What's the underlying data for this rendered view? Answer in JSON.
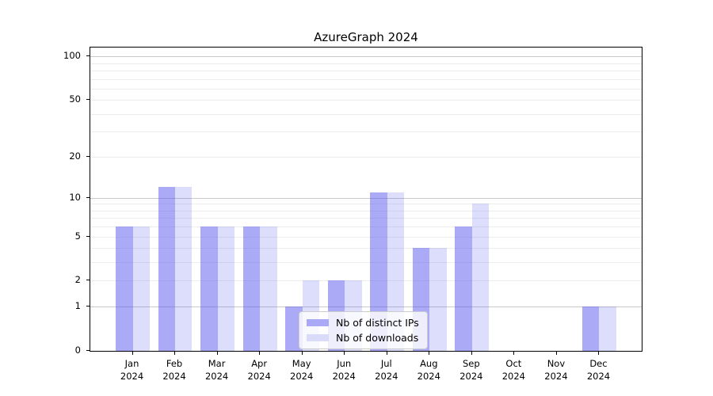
{
  "title": "AzureGraph 2024",
  "legend": {
    "items": [
      {
        "label": "Nb of distinct IPs"
      },
      {
        "label": "Nb of downloads"
      }
    ]
  },
  "colors": {
    "bar_distinct_ips": "rgba(85,85,238,0.5)",
    "bar_downloads": "rgba(85,85,238,0.2)",
    "legend_swatch_distinct_ips": "#a9a9f8",
    "legend_swatch_downloads": "#dadaf9",
    "major_gridline": "#c9c9c9",
    "minor_gridline": "#ededed",
    "axis": "#000000"
  },
  "chart_data": {
    "type": "bar",
    "title": "AzureGraph 2024",
    "xlabel": "",
    "ylabel": "",
    "categories": [
      "Jan 2024",
      "Feb 2024",
      "Mar 2024",
      "Apr 2024",
      "May 2024",
      "Jun 2024",
      "Jul 2024",
      "Aug 2024",
      "Sep 2024",
      "Oct 2024",
      "Nov 2024",
      "Dec 2024"
    ],
    "series": [
      {
        "name": "Nb of distinct IPs",
        "color": "rgba(85,85,238,0.5)",
        "values": [
          6,
          12,
          6,
          6,
          1,
          2,
          11,
          4,
          6,
          0,
          0,
          1
        ]
      },
      {
        "name": "Nb of downloads",
        "color": "rgba(85,85,238,0.2)",
        "values": [
          6,
          12,
          6,
          6,
          2,
          2,
          11,
          4,
          9,
          0,
          0,
          1
        ]
      }
    ],
    "yscale": "log1p",
    "ylim": [
      0,
      115
    ],
    "ytick_labels": [
      "100",
      "50",
      "20",
      "10",
      "5",
      "2",
      "1",
      "0"
    ],
    "ytick_values": [
      100,
      50,
      20,
      10,
      5,
      2,
      1,
      0
    ],
    "major_gridlines": [
      1,
      10,
      100
    ],
    "minor_gridlines": [
      2,
      3,
      4,
      5,
      6,
      7,
      8,
      9,
      20,
      30,
      40,
      50,
      60,
      70,
      80,
      90
    ],
    "grid": true,
    "legend_position": "inside lower-center"
  }
}
